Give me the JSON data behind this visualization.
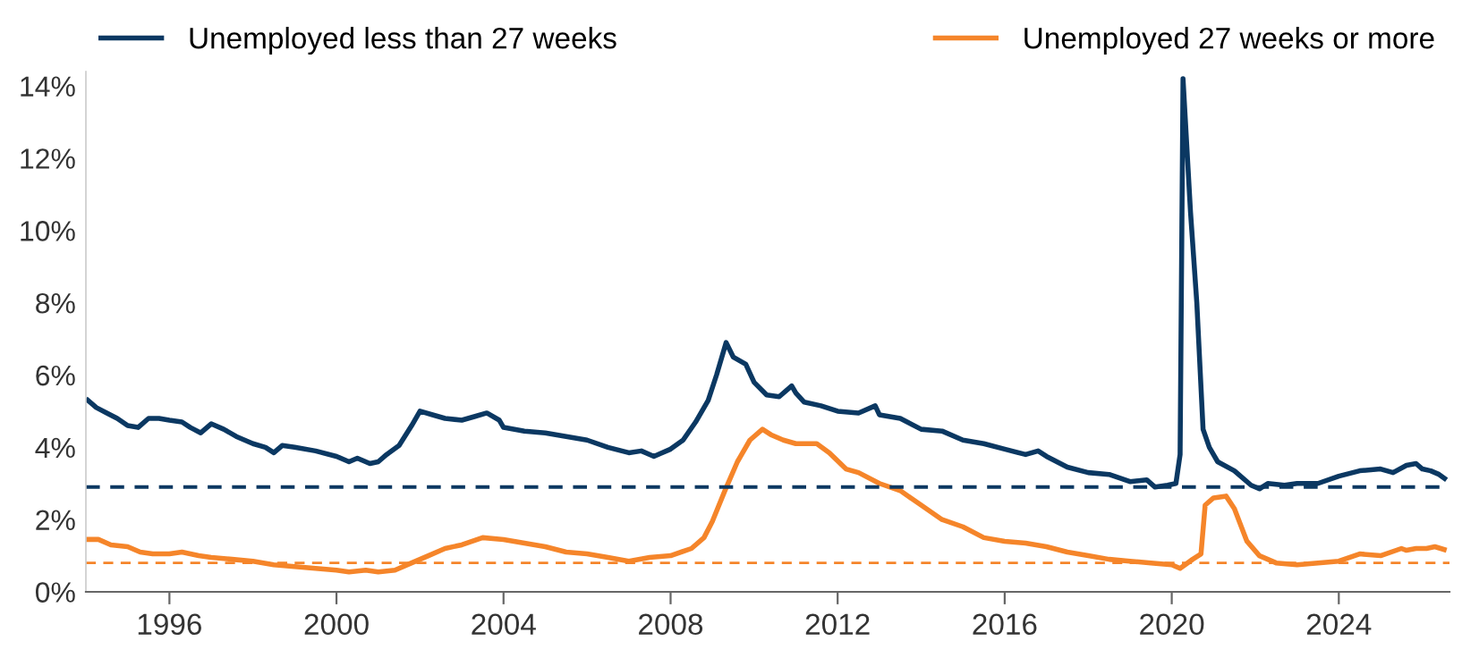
{
  "chart_data": {
    "type": "line",
    "xlim": [
      1994,
      2026.65
    ],
    "xticks": [
      1996,
      2000,
      2004,
      2008,
      2012,
      2016,
      2020,
      2024
    ],
    "ylim": [
      0,
      14.4
    ],
    "yticks": [
      {
        "value": 0,
        "label": "0%"
      },
      {
        "value": 2,
        "label": "2%"
      },
      {
        "value": 4,
        "label": "4%"
      },
      {
        "value": 6,
        "label": "6%"
      },
      {
        "value": 8,
        "label": "8%"
      },
      {
        "value": 10,
        "label": "10%"
      },
      {
        "value": 12,
        "label": "12%"
      },
      {
        "value": 14,
        "label": "14%"
      }
    ],
    "grid": false,
    "legend": "top",
    "line_style": "solid",
    "marker": "none",
    "series": [
      {
        "name": "Unemployed less than 27 weeks",
        "color": "#0b3862",
        "x": [
          1994.0,
          1994.25,
          1994.5,
          1994.75,
          1995.0,
          1995.25,
          1995.5,
          1995.75,
          1996.0,
          1996.3,
          1996.5,
          1996.75,
          1997.0,
          1997.3,
          1997.6,
          1998.0,
          1998.3,
          1998.5,
          1998.7,
          1999.0,
          1999.5,
          2000.0,
          2000.3,
          2000.5,
          2000.8,
          2001.0,
          2001.2,
          2001.5,
          2001.8,
          2002.0,
          2002.3,
          2002.6,
          2003.0,
          2003.3,
          2003.6,
          2003.9,
          2004.0,
          2004.5,
          2005.0,
          2005.5,
          2006.0,
          2006.5,
          2007.0,
          2007.3,
          2007.6,
          2008.0,
          2008.3,
          2008.6,
          2008.9,
          2009.1,
          2009.33,
          2009.5,
          2009.8,
          2010.0,
          2010.3,
          2010.6,
          2010.9,
          2011.0,
          2011.2,
          2011.6,
          2012.0,
          2012.5,
          2012.9,
          2013.0,
          2013.5,
          2014.0,
          2014.5,
          2015.0,
          2015.5,
          2016.0,
          2016.5,
          2016.8,
          2017.0,
          2017.5,
          2018.0,
          2018.5,
          2019.0,
          2019.4,
          2019.6,
          2019.9,
          2020.1,
          2020.2,
          2020.27,
          2020.45,
          2020.6,
          2020.75,
          2020.9,
          2021.1,
          2021.5,
          2021.9,
          2022.1,
          2022.3,
          2022.7,
          2023.0,
          2023.5,
          2024.0,
          2024.5,
          2025.0,
          2025.3,
          2025.62,
          2025.85,
          2026.0,
          2026.2,
          2026.4,
          2026.58
        ],
        "values": [
          5.35,
          5.1,
          4.95,
          4.8,
          4.6,
          4.55,
          4.8,
          4.8,
          4.75,
          4.7,
          4.55,
          4.4,
          4.65,
          4.5,
          4.3,
          4.1,
          4.0,
          3.85,
          4.05,
          4.0,
          3.9,
          3.75,
          3.6,
          3.7,
          3.55,
          3.6,
          3.8,
          4.05,
          4.6,
          5.0,
          4.9,
          4.8,
          4.75,
          4.85,
          4.95,
          4.75,
          4.55,
          4.45,
          4.4,
          4.3,
          4.2,
          4.0,
          3.85,
          3.9,
          3.75,
          3.95,
          4.2,
          4.7,
          5.3,
          6.0,
          6.9,
          6.5,
          6.3,
          5.8,
          5.45,
          5.4,
          5.7,
          5.5,
          5.25,
          5.15,
          5.0,
          4.95,
          5.15,
          4.9,
          4.8,
          4.5,
          4.45,
          4.2,
          4.1,
          3.95,
          3.8,
          3.9,
          3.75,
          3.45,
          3.3,
          3.25,
          3.05,
          3.1,
          2.9,
          2.95,
          3.0,
          3.8,
          14.2,
          10.5,
          8.0,
          4.5,
          4.0,
          3.6,
          3.35,
          2.95,
          2.85,
          3.0,
          2.95,
          3.0,
          3.0,
          3.2,
          3.35,
          3.4,
          3.3,
          3.5,
          3.55,
          3.4,
          3.35,
          3.25,
          3.1
        ]
      },
      {
        "name": "Unemployed 27 weeks or more",
        "color": "#f5852a",
        "x": [
          1994.0,
          1994.3,
          1994.6,
          1995.0,
          1995.3,
          1995.6,
          1996.0,
          1996.3,
          1996.7,
          1997.0,
          1997.5,
          1998.0,
          1998.5,
          1999.0,
          1999.5,
          2000.0,
          2000.3,
          2000.7,
          2001.0,
          2001.4,
          2001.8,
          2002.2,
          2002.6,
          2003.0,
          2003.5,
          2004.0,
          2004.5,
          2005.0,
          2005.5,
          2006.0,
          2006.5,
          2007.0,
          2007.5,
          2008.0,
          2008.5,
          2008.8,
          2009.0,
          2009.3,
          2009.6,
          2009.9,
          2010.2,
          2010.4,
          2010.7,
          2011.0,
          2011.5,
          2011.8,
          2012.2,
          2012.5,
          2013.0,
          2013.5,
          2014.0,
          2014.5,
          2015.0,
          2015.5,
          2016.0,
          2016.5,
          2017.0,
          2017.5,
          2018.0,
          2018.5,
          2019.0,
          2019.5,
          2020.0,
          2020.2,
          2020.5,
          2020.7,
          2020.8,
          2021.0,
          2021.3,
          2021.5,
          2021.8,
          2022.1,
          2022.5,
          2023.0,
          2023.5,
          2024.0,
          2024.5,
          2025.0,
          2025.5,
          2025.62,
          2025.85,
          2026.1,
          2026.3,
          2026.58
        ],
        "values": [
          1.45,
          1.45,
          1.3,
          1.25,
          1.1,
          1.05,
          1.05,
          1.1,
          1.0,
          0.95,
          0.9,
          0.85,
          0.75,
          0.7,
          0.65,
          0.6,
          0.55,
          0.6,
          0.55,
          0.6,
          0.8,
          1.0,
          1.2,
          1.3,
          1.5,
          1.45,
          1.35,
          1.25,
          1.1,
          1.05,
          0.95,
          0.85,
          0.95,
          1.0,
          1.2,
          1.5,
          1.95,
          2.8,
          3.6,
          4.2,
          4.5,
          4.35,
          4.2,
          4.1,
          4.1,
          3.85,
          3.4,
          3.3,
          3.0,
          2.8,
          2.4,
          2.0,
          1.8,
          1.5,
          1.4,
          1.35,
          1.25,
          1.1,
          1.0,
          0.9,
          0.85,
          0.8,
          0.75,
          0.65,
          0.9,
          1.05,
          2.4,
          2.6,
          2.65,
          2.3,
          1.4,
          1.0,
          0.8,
          0.75,
          0.8,
          0.85,
          1.05,
          1.0,
          1.2,
          1.15,
          1.2,
          1.2,
          1.25,
          1.15
        ]
      }
    ],
    "ref_lines": [
      {
        "axis": "y",
        "value": 2.9,
        "color": "#0b3862",
        "line_style": "dashed"
      },
      {
        "axis": "y",
        "value": 0.8,
        "color": "#f5852a",
        "line_style": "dashed"
      }
    ]
  }
}
